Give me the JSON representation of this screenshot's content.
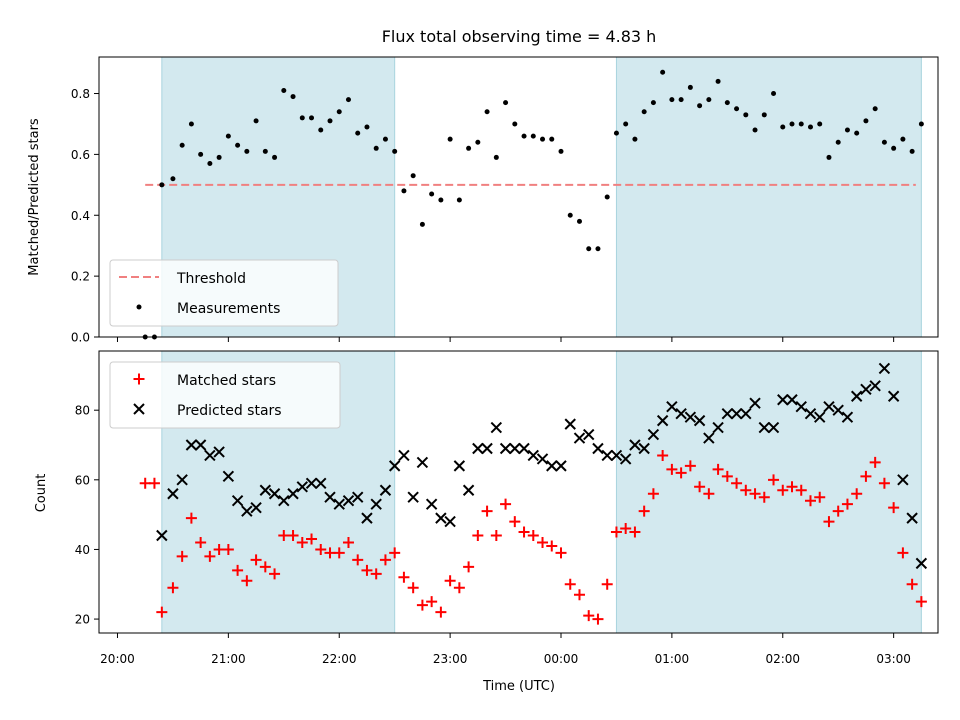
{
  "chart_data": [
    {
      "type": "scatter",
      "title": "Flux total observing time = 4.83 h",
      "xlabel": "",
      "ylabel": "Matched/Predicted stars",
      "ylim": [
        0.0,
        0.92
      ],
      "yticks": [
        0.0,
        0.2,
        0.4,
        0.6,
        0.8
      ],
      "ytick_labels": [
        "0.0",
        "0.2",
        "0.4",
        "0.6",
        "0.8"
      ],
      "legend_position": "lower-left",
      "shaded_intervals": [
        [
          "20:24",
          "22:30"
        ],
        [
          "00:30",
          "03:15"
        ]
      ],
      "shaded_color": "#d3e9ef",
      "series": [
        {
          "name": "Threshold",
          "style": "dashed-line",
          "color": "#f08080",
          "x": [
            "20:15",
            "03:12"
          ],
          "y": [
            0.5,
            0.5
          ]
        },
        {
          "name": "Measurements",
          "style": "dot",
          "color": "#000000",
          "points": [
            [
              "20:15",
              0.0
            ],
            [
              "20:20",
              0.0
            ],
            [
              "20:24",
              0.5
            ],
            [
              "20:30",
              0.52
            ],
            [
              "20:35",
              0.63
            ],
            [
              "20:40",
              0.7
            ],
            [
              "20:45",
              0.6
            ],
            [
              "20:50",
              0.57
            ],
            [
              "20:55",
              0.59
            ],
            [
              "21:00",
              0.66
            ],
            [
              "21:05",
              0.63
            ],
            [
              "21:10",
              0.61
            ],
            [
              "21:15",
              0.71
            ],
            [
              "21:20",
              0.61
            ],
            [
              "21:25",
              0.59
            ],
            [
              "21:30",
              0.81
            ],
            [
              "21:35",
              0.79
            ],
            [
              "21:40",
              0.72
            ],
            [
              "21:45",
              0.72
            ],
            [
              "21:50",
              0.68
            ],
            [
              "21:55",
              0.71
            ],
            [
              "22:00",
              0.74
            ],
            [
              "22:05",
              0.78
            ],
            [
              "22:10",
              0.67
            ],
            [
              "22:15",
              0.69
            ],
            [
              "22:20",
              0.62
            ],
            [
              "22:25",
              0.65
            ],
            [
              "22:30",
              0.61
            ],
            [
              "22:35",
              0.48
            ],
            [
              "22:40",
              0.53
            ],
            [
              "22:45",
              0.37
            ],
            [
              "22:50",
              0.47
            ],
            [
              "22:55",
              0.45
            ],
            [
              "23:00",
              0.65
            ],
            [
              "23:05",
              0.45
            ],
            [
              "23:10",
              0.62
            ],
            [
              "23:15",
              0.64
            ],
            [
              "23:20",
              0.74
            ],
            [
              "23:25",
              0.59
            ],
            [
              "23:30",
              0.77
            ],
            [
              "23:35",
              0.7
            ],
            [
              "23:40",
              0.66
            ],
            [
              "23:45",
              0.66
            ],
            [
              "23:50",
              0.65
            ],
            [
              "23:55",
              0.65
            ],
            [
              "00:00",
              0.61
            ],
            [
              "00:05",
              0.4
            ],
            [
              "00:10",
              0.38
            ],
            [
              "00:15",
              0.29
            ],
            [
              "00:20",
              0.29
            ],
            [
              "00:25",
              0.46
            ],
            [
              "00:30",
              0.67
            ],
            [
              "00:35",
              0.7
            ],
            [
              "00:40",
              0.65
            ],
            [
              "00:45",
              0.74
            ],
            [
              "00:50",
              0.77
            ],
            [
              "00:55",
              0.87
            ],
            [
              "01:00",
              0.78
            ],
            [
              "01:05",
              0.78
            ],
            [
              "01:10",
              0.82
            ],
            [
              "01:15",
              0.76
            ],
            [
              "01:20",
              0.78
            ],
            [
              "01:25",
              0.84
            ],
            [
              "01:30",
              0.77
            ],
            [
              "01:35",
              0.75
            ],
            [
              "01:40",
              0.73
            ],
            [
              "01:45",
              0.68
            ],
            [
              "01:50",
              0.73
            ],
            [
              "01:55",
              0.8
            ],
            [
              "02:00",
              0.69
            ],
            [
              "02:05",
              0.7
            ],
            [
              "02:10",
              0.7
            ],
            [
              "02:15",
              0.69
            ],
            [
              "02:20",
              0.7
            ],
            [
              "02:25",
              0.59
            ],
            [
              "02:30",
              0.64
            ],
            [
              "02:35",
              0.68
            ],
            [
              "02:40",
              0.67
            ],
            [
              "02:45",
              0.71
            ],
            [
              "02:50",
              0.75
            ],
            [
              "02:55",
              0.64
            ],
            [
              "03:00",
              0.62
            ],
            [
              "03:05",
              0.65
            ],
            [
              "03:10",
              0.61
            ],
            [
              "03:15",
              0.7
            ]
          ]
        }
      ]
    },
    {
      "type": "scatter",
      "title": "",
      "xlabel": "Time (UTC)",
      "ylabel": "Count",
      "ylim": [
        16,
        97
      ],
      "yticks": [
        20,
        40,
        60,
        80
      ],
      "ytick_labels": [
        "20",
        "40",
        "60",
        "80"
      ],
      "xticks": [
        "20:00",
        "21:00",
        "22:00",
        "23:00",
        "00:00",
        "01:00",
        "02:00",
        "03:00"
      ],
      "legend_position": "upper-left",
      "shaded_intervals": [
        [
          "20:24",
          "22:30"
        ],
        [
          "00:30",
          "03:15"
        ]
      ],
      "shaded_color": "#d3e9ef",
      "series": [
        {
          "name": "Matched stars",
          "marker": "+",
          "color": "#ff0000",
          "points": [
            [
              "20:15",
              59
            ],
            [
              "20:20",
              59
            ],
            [
              "20:24",
              22
            ],
            [
              "20:30",
              29
            ],
            [
              "20:35",
              38
            ],
            [
              "20:40",
              49
            ],
            [
              "20:45",
              42
            ],
            [
              "20:50",
              38
            ],
            [
              "20:55",
              40
            ],
            [
              "21:00",
              40
            ],
            [
              "21:05",
              34
            ],
            [
              "21:10",
              31
            ],
            [
              "21:15",
              37
            ],
            [
              "21:20",
              35
            ],
            [
              "21:25",
              33
            ],
            [
              "21:30",
              44
            ],
            [
              "21:35",
              44
            ],
            [
              "21:40",
              42
            ],
            [
              "21:45",
              43
            ],
            [
              "21:50",
              40
            ],
            [
              "21:55",
              39
            ],
            [
              "22:00",
              39
            ],
            [
              "22:05",
              42
            ],
            [
              "22:10",
              37
            ],
            [
              "22:15",
              34
            ],
            [
              "22:20",
              33
            ],
            [
              "22:25",
              37
            ],
            [
              "22:30",
              39
            ],
            [
              "22:35",
              32
            ],
            [
              "22:40",
              29
            ],
            [
              "22:45",
              24
            ],
            [
              "22:50",
              25
            ],
            [
              "22:55",
              22
            ],
            [
              "23:00",
              31
            ],
            [
              "23:05",
              29
            ],
            [
              "23:10",
              35
            ],
            [
              "23:15",
              44
            ],
            [
              "23:20",
              51
            ],
            [
              "23:25",
              44
            ],
            [
              "23:30",
              53
            ],
            [
              "23:35",
              48
            ],
            [
              "23:40",
              45
            ],
            [
              "23:45",
              44
            ],
            [
              "23:50",
              42
            ],
            [
              "23:55",
              41
            ],
            [
              "00:00",
              39
            ],
            [
              "00:05",
              30
            ],
            [
              "00:10",
              27
            ],
            [
              "00:15",
              21
            ],
            [
              "00:20",
              20
            ],
            [
              "00:25",
              30
            ],
            [
              "00:30",
              45
            ],
            [
              "00:35",
              46
            ],
            [
              "00:40",
              45
            ],
            [
              "00:45",
              51
            ],
            [
              "00:50",
              56
            ],
            [
              "00:55",
              67
            ],
            [
              "01:00",
              63
            ],
            [
              "01:05",
              62
            ],
            [
              "01:10",
              64
            ],
            [
              "01:15",
              58
            ],
            [
              "01:20",
              56
            ],
            [
              "01:25",
              63
            ],
            [
              "01:30",
              61
            ],
            [
              "01:35",
              59
            ],
            [
              "01:40",
              57
            ],
            [
              "01:45",
              56
            ],
            [
              "01:50",
              55
            ],
            [
              "01:55",
              60
            ],
            [
              "02:00",
              57
            ],
            [
              "02:05",
              58
            ],
            [
              "02:10",
              57
            ],
            [
              "02:15",
              54
            ],
            [
              "02:20",
              55
            ],
            [
              "02:25",
              48
            ],
            [
              "02:30",
              51
            ],
            [
              "02:35",
              53
            ],
            [
              "02:40",
              56
            ],
            [
              "02:45",
              61
            ],
            [
              "02:50",
              65
            ],
            [
              "02:55",
              59
            ],
            [
              "03:00",
              52
            ],
            [
              "03:05",
              39
            ],
            [
              "03:10",
              30
            ],
            [
              "03:15",
              25
            ]
          ]
        },
        {
          "name": "Predicted stars",
          "marker": "x",
          "color": "#000000",
          "points": [
            [
              "20:24",
              44
            ],
            [
              "20:30",
              56
            ],
            [
              "20:35",
              60
            ],
            [
              "20:40",
              70
            ],
            [
              "20:45",
              70
            ],
            [
              "20:50",
              67
            ],
            [
              "20:55",
              68
            ],
            [
              "21:00",
              61
            ],
            [
              "21:05",
              54
            ],
            [
              "21:10",
              51
            ],
            [
              "21:15",
              52
            ],
            [
              "21:20",
              57
            ],
            [
              "21:25",
              56
            ],
            [
              "21:30",
              54
            ],
            [
              "21:35",
              56
            ],
            [
              "21:40",
              58
            ],
            [
              "21:45",
              59
            ],
            [
              "21:50",
              59
            ],
            [
              "21:55",
              55
            ],
            [
              "22:00",
              53
            ],
            [
              "22:05",
              54
            ],
            [
              "22:10",
              55
            ],
            [
              "22:15",
              49
            ],
            [
              "22:20",
              53
            ],
            [
              "22:25",
              57
            ],
            [
              "22:30",
              64
            ],
            [
              "22:35",
              67
            ],
            [
              "22:40",
              55
            ],
            [
              "22:45",
              65
            ],
            [
              "22:50",
              53
            ],
            [
              "22:55",
              49
            ],
            [
              "23:00",
              48
            ],
            [
              "23:05",
              64
            ],
            [
              "23:10",
              57
            ],
            [
              "23:15",
              69
            ],
            [
              "23:20",
              69
            ],
            [
              "23:25",
              75
            ],
            [
              "23:30",
              69
            ],
            [
              "23:35",
              69
            ],
            [
              "23:40",
              69
            ],
            [
              "23:45",
              67
            ],
            [
              "23:50",
              66
            ],
            [
              "23:55",
              64
            ],
            [
              "00:00",
              64
            ],
            [
              "00:05",
              76
            ],
            [
              "00:10",
              72
            ],
            [
              "00:15",
              73
            ],
            [
              "00:20",
              69
            ],
            [
              "00:25",
              67
            ],
            [
              "00:30",
              67
            ],
            [
              "00:35",
              66
            ],
            [
              "00:40",
              70
            ],
            [
              "00:45",
              69
            ],
            [
              "00:50",
              73
            ],
            [
              "00:55",
              77
            ],
            [
              "01:00",
              81
            ],
            [
              "01:05",
              79
            ],
            [
              "01:10",
              78
            ],
            [
              "01:15",
              77
            ],
            [
              "01:20",
              72
            ],
            [
              "01:25",
              75
            ],
            [
              "01:30",
              79
            ],
            [
              "01:35",
              79
            ],
            [
              "01:40",
              79
            ],
            [
              "01:45",
              82
            ],
            [
              "01:50",
              75
            ],
            [
              "01:55",
              75
            ],
            [
              "02:00",
              83
            ],
            [
              "02:05",
              83
            ],
            [
              "02:10",
              81
            ],
            [
              "02:15",
              79
            ],
            [
              "02:20",
              78
            ],
            [
              "02:25",
              81
            ],
            [
              "02:30",
              80
            ],
            [
              "02:35",
              78
            ],
            [
              "02:40",
              84
            ],
            [
              "02:45",
              86
            ],
            [
              "02:50",
              87
            ],
            [
              "02:55",
              92
            ],
            [
              "03:00",
              84
            ],
            [
              "03:05",
              60
            ],
            [
              "03:10",
              49
            ],
            [
              "03:15",
              36
            ]
          ]
        }
      ]
    }
  ]
}
